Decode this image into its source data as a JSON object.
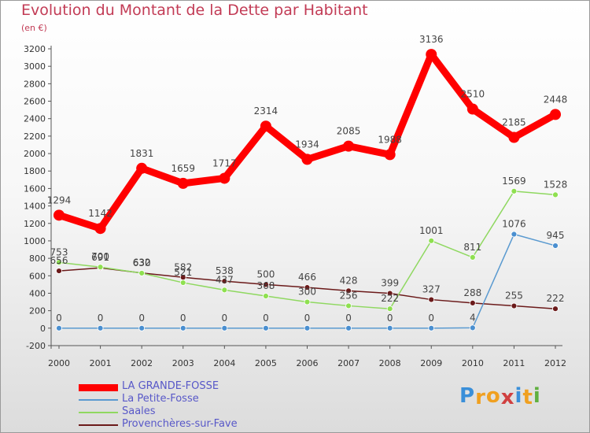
{
  "title": "Evolution du Montant de la Dette par Habitant",
  "subtitle": "(en €)",
  "logo": {
    "text": "Proxiti",
    "colors": [
      "#3a8fd9",
      "#f0a020",
      "#f0a020",
      "#d04040",
      "#3a8fd9",
      "#f0a020",
      "#60b040"
    ]
  },
  "chart_data": {
    "type": "line",
    "title": "Evolution du Montant de la Dette par Habitant",
    "unit_label": "(en €)",
    "x": [
      "2000",
      "2001",
      "2002",
      "2003",
      "2004",
      "2005",
      "2006",
      "2007",
      "2008",
      "2009",
      "2010",
      "2011",
      "2012"
    ],
    "ylim": [
      -200,
      3200
    ],
    "yticks": [
      -200,
      0,
      200,
      400,
      600,
      800,
      1000,
      1200,
      1400,
      1600,
      1800,
      2000,
      2200,
      2400,
      2600,
      2800,
      3000,
      3200
    ],
    "grid": false,
    "legend_position": "bottom-left",
    "series": [
      {
        "name": "LA GRANDE-FOSSE",
        "color": "#ff0000",
        "values": [
          1294,
          1142,
          1831,
          1659,
          1717,
          2314,
          1934,
          2085,
          1988,
          3136,
          2510,
          2185,
          2448
        ]
      },
      {
        "name": "La Petite-Fosse",
        "color": "#5a9ad0",
        "values": [
          0,
          0,
          0,
          0,
          0,
          0,
          0,
          0,
          0,
          0,
          4,
          1076,
          945
        ]
      },
      {
        "name": "Saales",
        "color": "#8fd860",
        "values": [
          753,
          700,
          630,
          521,
          437,
          368,
          300,
          256,
          222,
          1001,
          811,
          1569,
          1528
        ]
      },
      {
        "name": "Provenchères-sur-Fave",
        "color": "#6b1a1a",
        "values": [
          656,
          691,
          632,
          582,
          538,
          500,
          466,
          428,
          399,
          327,
          288,
          255,
          222
        ]
      }
    ]
  }
}
